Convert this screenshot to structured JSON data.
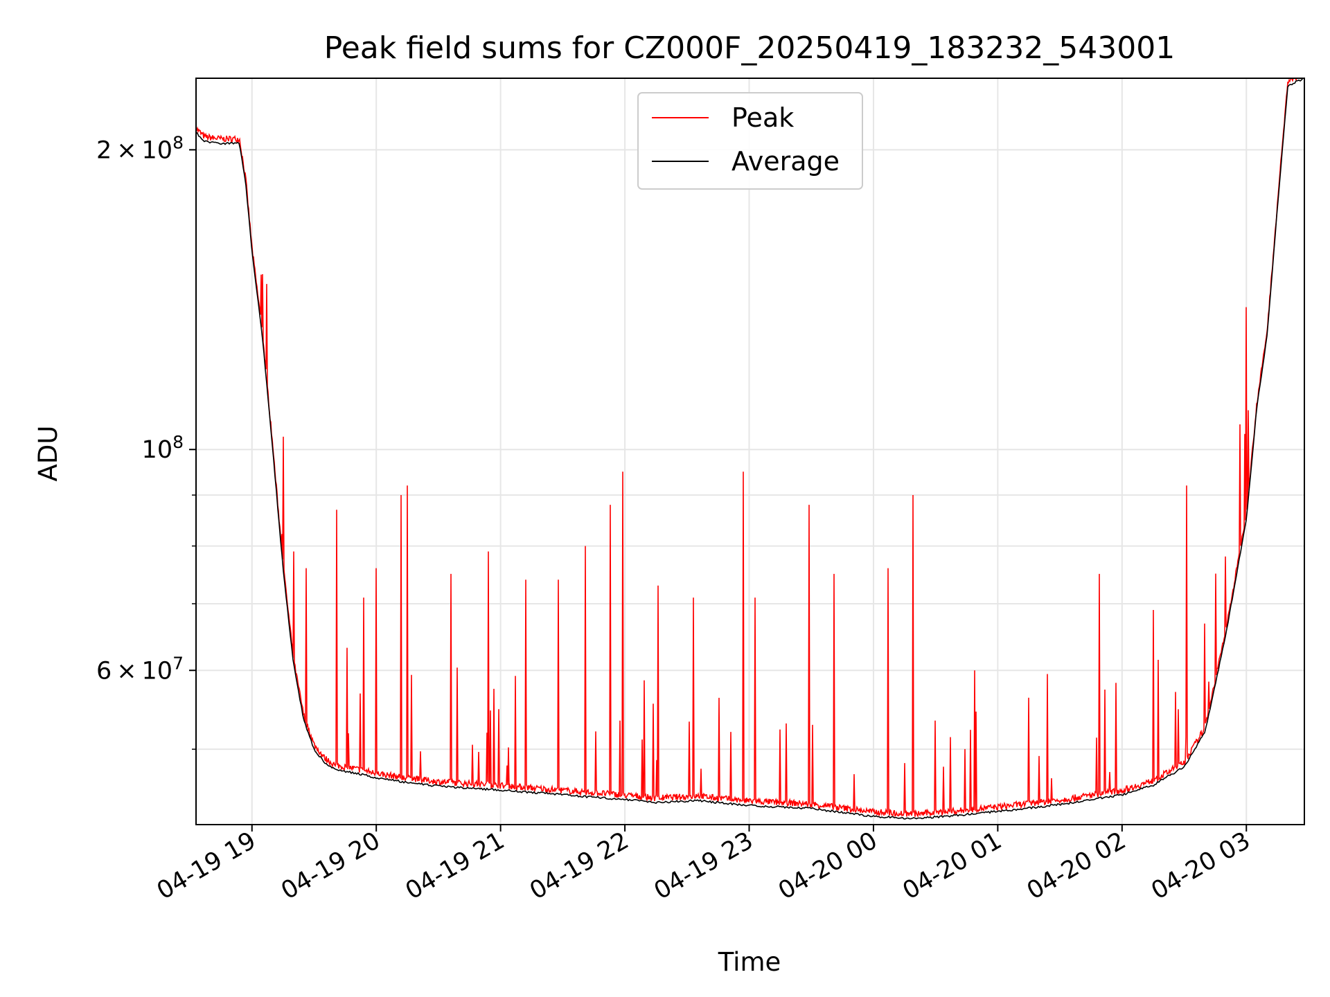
{
  "chart_data": {
    "type": "line",
    "title": "Peak field sums for CZ000F_20250419_183232_543001",
    "xlabel": "Time",
    "ylabel": "ADU",
    "y_scale": "log",
    "ylim": [
      42000000,
      236000000
    ],
    "xlim": [
      "2025-04-19 18:33",
      "2025-04-20 03:28"
    ],
    "grid": true,
    "legend_placement": "upper center",
    "x_ticks": [
      {
        "value": "2025-04-19 19:00",
        "label": "04-19 19"
      },
      {
        "value": "2025-04-19 20:00",
        "label": "04-19 20"
      },
      {
        "value": "2025-04-19 21:00",
        "label": "04-19 21"
      },
      {
        "value": "2025-04-19 22:00",
        "label": "04-19 22"
      },
      {
        "value": "2025-04-19 23:00",
        "label": "04-19 23"
      },
      {
        "value": "2025-04-20 00:00",
        "label": "04-20 00"
      },
      {
        "value": "2025-04-20 01:00",
        "label": "04-20 01"
      },
      {
        "value": "2025-04-20 02:00",
        "label": "04-20 02"
      },
      {
        "value": "2025-04-20 03:00",
        "label": "04-20 03"
      }
    ],
    "y_ticks": [
      {
        "value": 200000000,
        "mantissa": "2",
        "times": "×",
        "base": "10",
        "exp": "8"
      },
      {
        "value": 100000000,
        "mantissa": "",
        "times": "",
        "base": "10",
        "exp": "8"
      },
      {
        "value": 60000000,
        "mantissa": "6",
        "times": "×",
        "base": "10",
        "exp": "7"
      }
    ],
    "y_minor_ticks": [
      50000000,
      70000000,
      80000000,
      90000000
    ],
    "series": [
      {
        "name": "Average",
        "color": "#000000",
        "x": [
          "2025-04-19 18:33",
          "2025-04-19 18:37",
          "2025-04-19 18:45",
          "2025-04-19 18:54",
          "2025-04-19 18:57",
          "2025-04-19 19:00",
          "2025-04-19 19:05",
          "2025-04-19 19:10",
          "2025-04-19 19:15",
          "2025-04-19 19:20",
          "2025-04-19 19:25",
          "2025-04-19 19:30",
          "2025-04-19 19:35",
          "2025-04-19 19:40",
          "2025-04-19 19:50",
          "2025-04-19 20:00",
          "2025-04-19 20:15",
          "2025-04-19 20:30",
          "2025-04-19 21:00",
          "2025-04-19 21:30",
          "2025-04-19 22:00",
          "2025-04-19 22:15",
          "2025-04-19 22:35",
          "2025-04-19 23:00",
          "2025-04-19 23:30",
          "2025-04-20 00:00",
          "2025-04-20 00:20",
          "2025-04-20 00:40",
          "2025-04-20 01:00",
          "2025-04-20 01:30",
          "2025-04-20 02:00",
          "2025-04-20 02:15",
          "2025-04-20 02:30",
          "2025-04-20 02:40",
          "2025-04-20 02:50",
          "2025-04-20 03:00",
          "2025-04-20 03:05",
          "2025-04-20 03:10",
          "2025-04-20 03:15",
          "2025-04-20 03:20",
          "2025-04-20 03:28"
        ],
        "y": [
          208000000,
          204000000,
          203000000,
          203000000,
          185000000,
          158000000,
          130000000,
          100000000,
          76000000,
          61000000,
          53500000,
          50000000,
          48500000,
          47700000,
          47300000,
          46800000,
          46300000,
          45900000,
          45500000,
          45000000,
          44500000,
          44200000,
          44400000,
          43900000,
          43600000,
          42800000,
          42600000,
          42900000,
          43300000,
          44000000,
          45000000,
          46000000,
          48000000,
          52000000,
          65000000,
          85000000,
          110000000,
          130000000,
          175000000,
          232000000,
          236000000
        ]
      },
      {
        "name": "Peak",
        "color": "#ff0000",
        "spikes": [
          {
            "x": "2025-04-19 19:05",
            "y": 150000000
          },
          {
            "x": "2025-04-19 19:15",
            "y": 103000000
          },
          {
            "x": "2025-04-19 19:20",
            "y": 79000000
          },
          {
            "x": "2025-04-19 19:26",
            "y": 76000000
          },
          {
            "x": "2025-04-19 19:41",
            "y": 87000000
          },
          {
            "x": "2025-04-19 19:54",
            "y": 71000000
          },
          {
            "x": "2025-04-19 20:00",
            "y": 76000000
          },
          {
            "x": "2025-04-19 20:12",
            "y": 90000000
          },
          {
            "x": "2025-04-19 20:15",
            "y": 92000000
          },
          {
            "x": "2025-04-19 20:36",
            "y": 75000000
          },
          {
            "x": "2025-04-19 20:54",
            "y": 79000000
          },
          {
            "x": "2025-04-19 21:12",
            "y": 74000000
          },
          {
            "x": "2025-04-19 21:28",
            "y": 74000000
          },
          {
            "x": "2025-04-19 21:41",
            "y": 80000000
          },
          {
            "x": "2025-04-19 21:53",
            "y": 88000000
          },
          {
            "x": "2025-04-19 21:59",
            "y": 95000000
          },
          {
            "x": "2025-04-19 22:16",
            "y": 73000000
          },
          {
            "x": "2025-04-19 22:33",
            "y": 71000000
          },
          {
            "x": "2025-04-19 22:57",
            "y": 95000000
          },
          {
            "x": "2025-04-19 23:03",
            "y": 71000000
          },
          {
            "x": "2025-04-19 23:29",
            "y": 88000000
          },
          {
            "x": "2025-04-19 23:41",
            "y": 75000000
          },
          {
            "x": "2025-04-20 00:07",
            "y": 76000000
          },
          {
            "x": "2025-04-20 00:19",
            "y": 90000000
          },
          {
            "x": "2025-04-20 00:49",
            "y": 60000000
          },
          {
            "x": "2025-04-20 01:24",
            "y": 59500000
          },
          {
            "x": "2025-04-20 01:49",
            "y": 75000000
          },
          {
            "x": "2025-04-20 02:15",
            "y": 69000000
          },
          {
            "x": "2025-04-20 02:31",
            "y": 92000000
          },
          {
            "x": "2025-04-20 02:57",
            "y": 106000000
          },
          {
            "x": "2025-04-20 03:00",
            "y": 139000000
          }
        ]
      }
    ]
  }
}
